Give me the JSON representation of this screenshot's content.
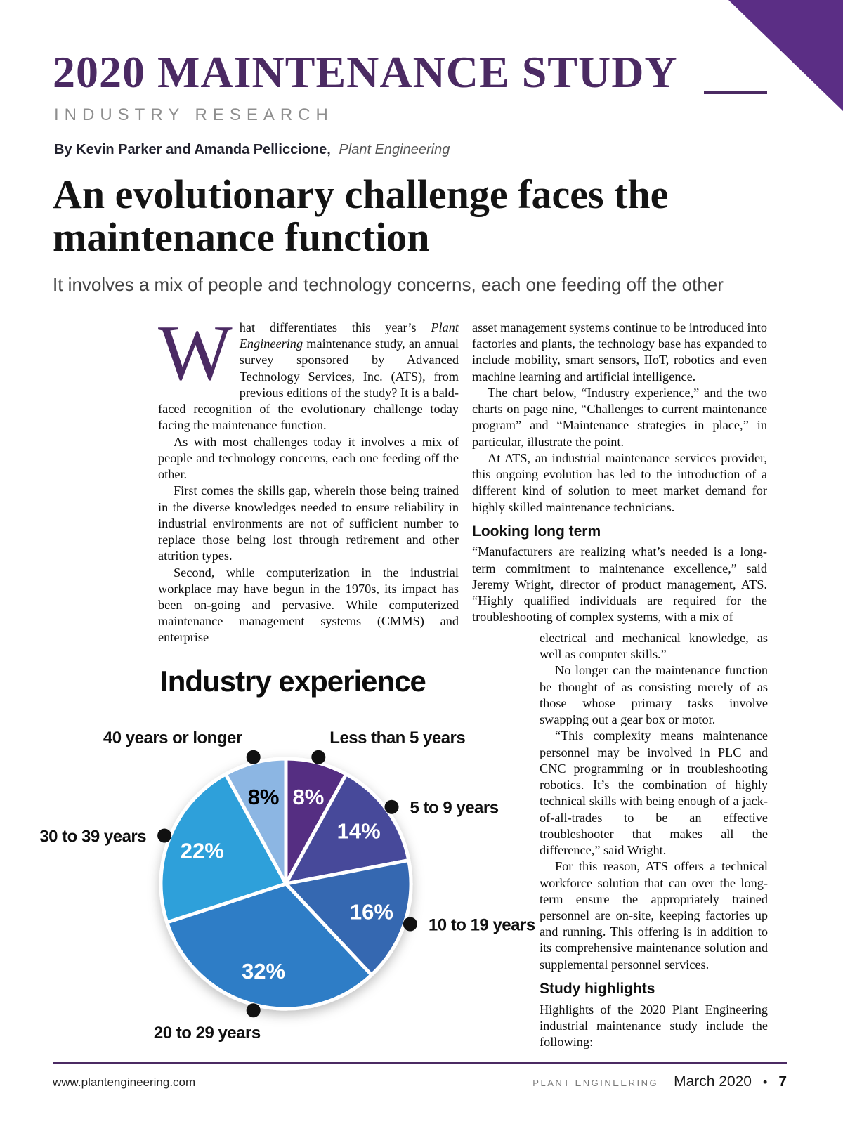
{
  "colors": {
    "accent_purple": "#4b2a63",
    "corner_purple": "#5b2e85"
  },
  "header": {
    "title": "2020 MAINTENANCE STUDY",
    "kicker": "INDUSTRY RESEARCH",
    "byline_authors": "By Kevin Parker and Amanda Pelliccione,",
    "byline_publication": "Plant Engineering"
  },
  "article": {
    "headline": "An evolutionary challenge faces the maintenance function",
    "deck": "It involves a mix of people and technology concerns, each one feeding off the other",
    "left_column": {
      "dropcap": "W",
      "p1_pre": "hat differentiates this year’s ",
      "p1_italic": "Plant Engineering",
      "p1_post": " maintenance study, an annual survey sponsored by Advanced Technology Services, Inc. (ATS), from previous editions of the study? It is a bald-faced recognition of the evolutionary challenge today facing the maintenance function.",
      "p2": "As with most challenges today it involves a mix of people and technology concerns, each one feeding off the other.",
      "p3": "First comes the skills gap, wherein those being trained in the diverse knowledges needed to ensure reliability in industrial environments are not of sufficient number to replace those being lost through retirement and other attrition types.",
      "p4": "Second, while computerization in the industrial workplace may have begun in the 1970s, its impact has been on-going and pervasive. While computerized maintenance management systems (CMMS) and enterprise"
    },
    "right_column": {
      "p1": "asset management systems continue to be introduced into factories and plants, the technology base has expanded to include mobility, smart sensors, IIoT, robotics and even machine learning and artificial intelligence.",
      "p2": "The chart below, “Industry experience,” and the two charts on page nine, “Challenges to current maintenance program” and “Maintenance strategies in place,” in particular, illustrate the point.",
      "p3": "At ATS, an industrial maintenance services provider, this ongoing evolution has led to the introduction of a different kind of solution to meet market demand for highly skilled maintenance technicians.",
      "h_looking": "Looking long term",
      "p4a": "“Manufacturers are realizing what’s needed is a long-term commitment to maintenance excellence,” said Jeremy Wright, director of product management, ATS. “Highly qualified individuals are required for the troubleshooting of complex systems, with a mix of",
      "p4b": "electrical and mechanical knowledge, as well as computer skills.”",
      "p5": "No longer can the maintenance function be thought of as consisting merely of as those whose primary tasks involve swapping out a gear box or motor.",
      "p6": "“This complexity means maintenance personnel may be involved in PLC and CNC programming or in troubleshooting robotics. It’s the combination of highly technical skills with being enough of a jack-of-all-trades to be an effective troubleshooter that makes all the difference,” said Wright.",
      "p7": "For this reason, ATS offers a technical workforce solution that can over the long-term ensure the appropriately trained personnel are on-site, keeping factories up and running. This offering is in addition to its comprehensive maintenance solution and supplemental personnel services.",
      "h_highlights": "Study highlights",
      "p8": "Highlights of the 2020 Plant Engineering industrial maintenance study include the following:"
    }
  },
  "chart_data": {
    "type": "pie",
    "title": "Industry experience",
    "start_angle_deg": 0,
    "direction": "clockwise",
    "segments": [
      {
        "label": "Less than 5 years",
        "value": 8,
        "value_label": "8%",
        "color": "#542d82",
        "value_label_color": "#ffffff"
      },
      {
        "label": "5 to 9 years",
        "value": 14,
        "value_label": "14%",
        "color": "#46489a",
        "value_label_color": "#ffffff"
      },
      {
        "label": "10 to 19 years",
        "value": 16,
        "value_label": "16%",
        "color": "#3667b1",
        "value_label_color": "#ffffff"
      },
      {
        "label": "20 to 29 years",
        "value": 32,
        "value_label": "32%",
        "color": "#2d7dc6",
        "value_label_color": "#ffffff"
      },
      {
        "label": "30 to 39 years",
        "value": 22,
        "value_label": "22%",
        "color": "#2fa0da",
        "value_label_color": "#ffffff"
      },
      {
        "label": "40 years or longer",
        "value": 8,
        "value_label": "8%",
        "color": "#8cb6e3",
        "value_label_color": "#000000"
      }
    ]
  },
  "footer": {
    "website": "www.plantengineering.com",
    "publication": "PLANT ENGINEERING",
    "issue": "March 2020",
    "bullet": "•",
    "page_number": "7"
  }
}
